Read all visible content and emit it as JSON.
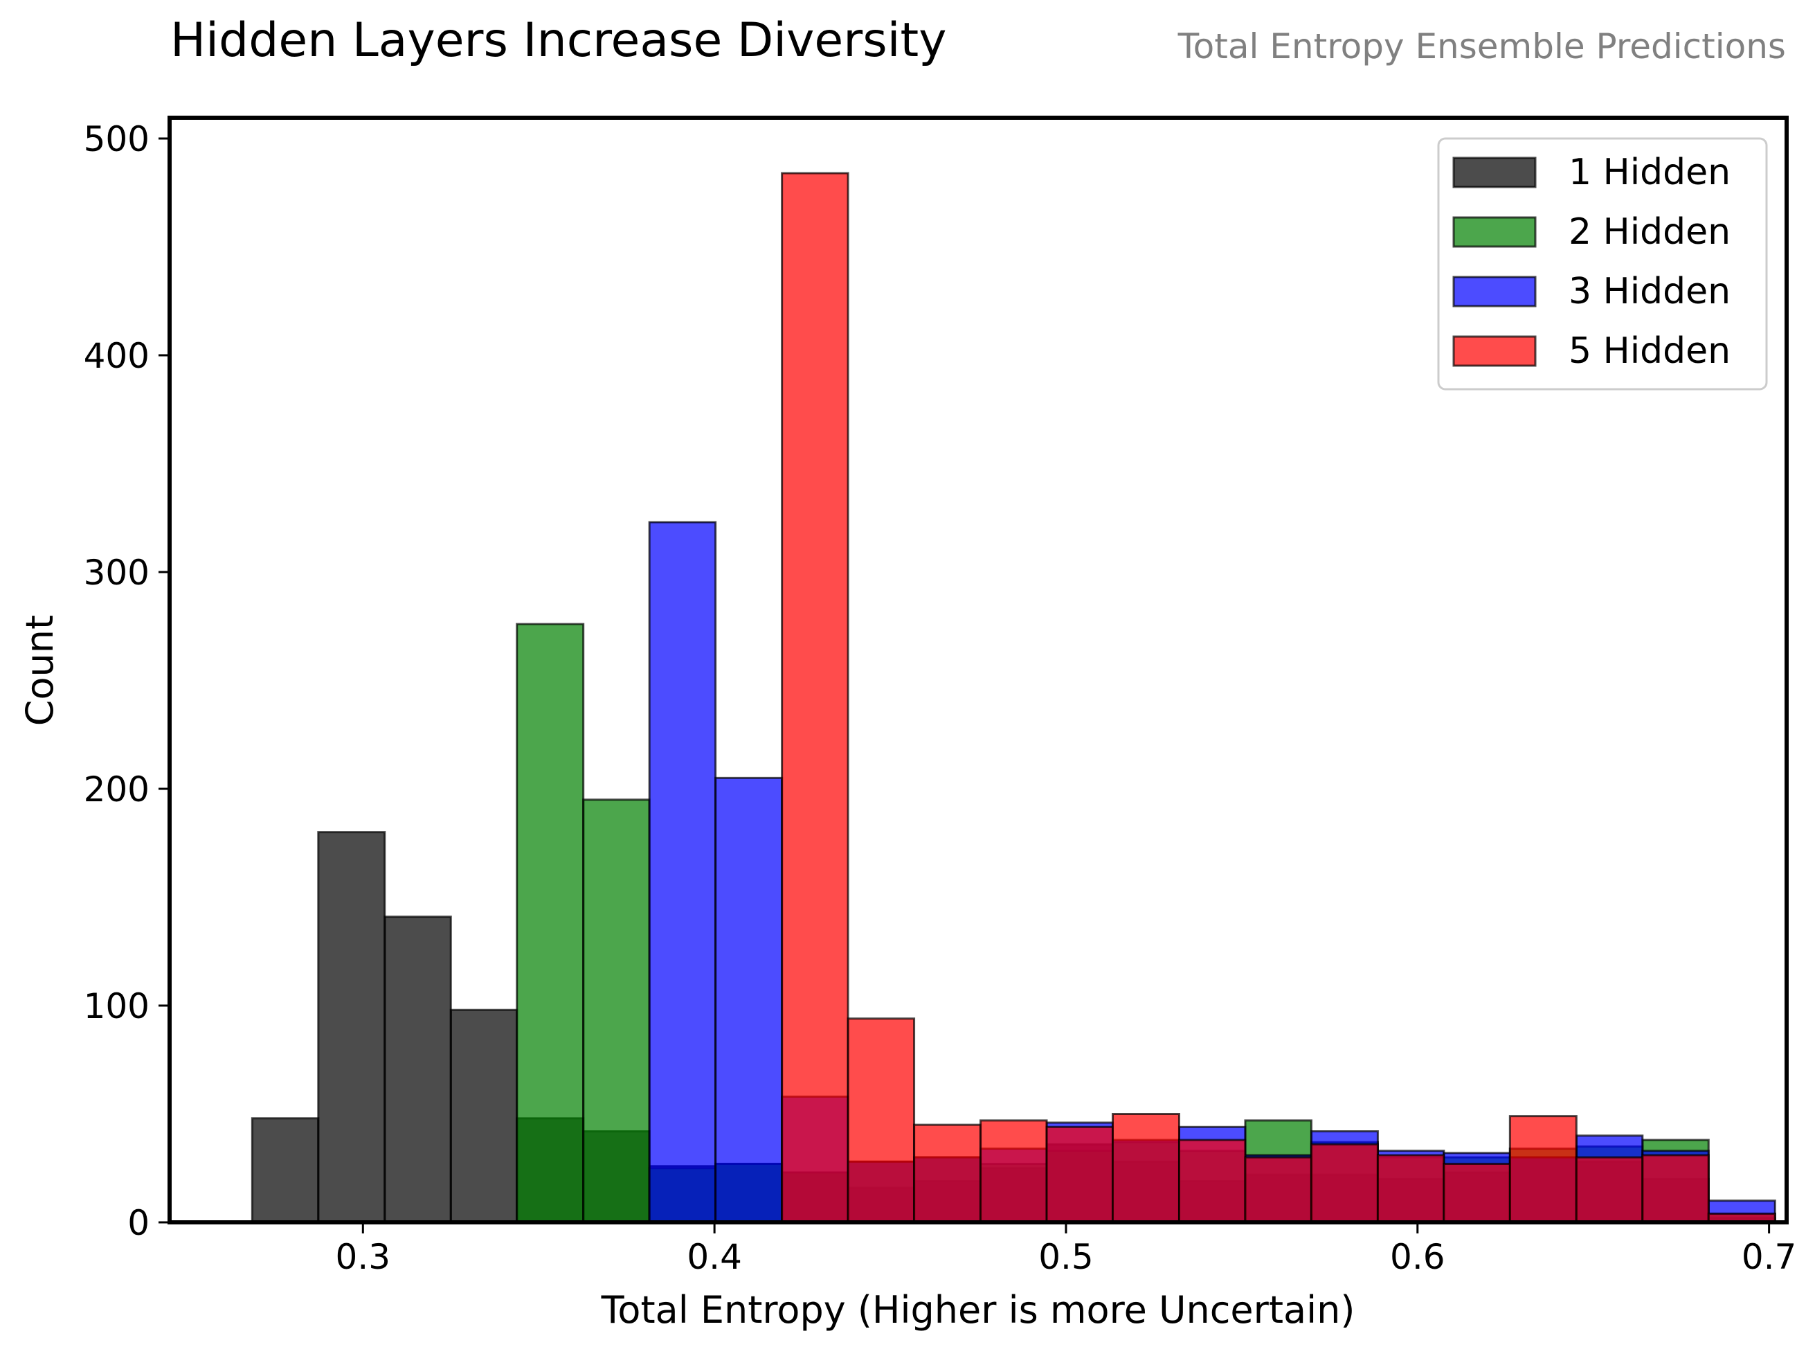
{
  "chart_data": {
    "type": "bar",
    "title": "Hidden Layers Increase Diversity",
    "subtitle": "Total Entropy Ensemble Predictions",
    "xlabel": "Total Entropy (Higher is more Uncertain)",
    "ylabel": "Count",
    "xlim": [
      0.245,
      0.705
    ],
    "ylim": [
      0,
      500
    ],
    "xticks": [
      0.3,
      0.4,
      0.5,
      0.6,
      0.7
    ],
    "xtick_labels": [
      "0.3",
      "0.4",
      "0.5",
      "0.6",
      "0.7"
    ],
    "yticks": [
      0,
      100,
      200,
      300,
      400,
      500
    ],
    "ytick_labels": [
      "0",
      "100",
      "200",
      "300",
      "400",
      "500"
    ],
    "grid": false,
    "legend_position": "top-right",
    "bin_edges": [
      0.2685,
      0.2873,
      0.3062,
      0.325,
      0.3438,
      0.3627,
      0.3815,
      0.4003,
      0.4192,
      0.438,
      0.4568,
      0.4757,
      0.4945,
      0.5133,
      0.5322,
      0.551,
      0.5698,
      0.5887,
      0.6075,
      0.6263,
      0.6452,
      0.664,
      0.6828,
      0.7017
    ],
    "series": [
      {
        "name": "1 Hidden",
        "color": "#000000",
        "values": [
          48,
          180,
          141,
          98,
          48,
          42,
          26,
          27,
          23,
          16,
          19,
          25,
          36,
          28,
          19,
          22,
          22,
          20,
          23,
          30,
          28,
          20,
          2
        ]
      },
      {
        "name": "2 Hidden",
        "color": "#008000",
        "values": [
          0,
          0,
          0,
          0,
          276,
          195,
          25,
          27,
          23,
          28,
          30,
          27,
          33,
          37,
          33,
          47,
          37,
          30,
          30,
          34,
          35,
          38,
          4
        ]
      },
      {
        "name": "3 Hidden",
        "color": "#0000ff",
        "values": [
          0,
          0,
          0,
          0,
          0,
          0,
          323,
          205,
          58,
          28,
          30,
          34,
          46,
          38,
          44,
          31,
          42,
          33,
          32,
          30,
          40,
          33,
          10
        ]
      },
      {
        "name": "5 Hidden",
        "color": "#ff0000",
        "values": [
          0,
          0,
          0,
          0,
          0,
          0,
          0,
          0,
          484,
          94,
          45,
          47,
          44,
          50,
          38,
          30,
          36,
          31,
          27,
          49,
          30,
          31,
          4
        ]
      }
    ]
  }
}
